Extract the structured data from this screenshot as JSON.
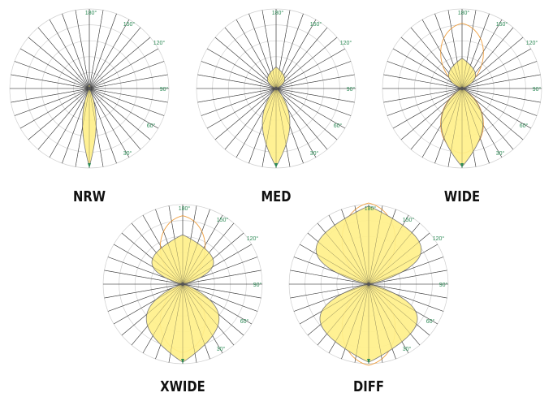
{
  "colors": {
    "grid_circle": "#d0d0d0",
    "grid_spoke": "#3a3a3a",
    "tick_text": "#2e8b57",
    "fill": "#fff08a",
    "fill_stroke": "#7a7a7a",
    "half_power": "#f0a040",
    "axis_marker": "#2e8b57"
  },
  "angle_ticks": [
    "180°",
    "150°",
    "120°",
    "90°",
    "60°",
    "30°"
  ],
  "panels": [
    {
      "name": "NRW",
      "lower": {
        "len": 0.98,
        "half": 5
      },
      "upper": {
        "len": 0.05,
        "half": 10
      },
      "cone": null
    },
    {
      "name": "MED",
      "lower": {
        "len": 0.98,
        "half": 10
      },
      "upper": {
        "len": 0.27,
        "half": 22
      },
      "cone": null
    },
    {
      "name": "WIDE",
      "lower": {
        "len": 0.98,
        "half": 15
      },
      "upper": {
        "len": 0.38,
        "half": 24
      },
      "cone": 0.82
    },
    {
      "name": "XWIDE",
      "lower": {
        "len": 0.98,
        "half": 25
      },
      "upper": {
        "len": 0.62,
        "half": 32
      },
      "cone": 0.86
    },
    {
      "name": "DIFF",
      "lower": {
        "len": 0.98,
        "half": 32
      },
      "upper": {
        "len": 0.98,
        "half": 34
      },
      "cone": 1.02
    }
  ]
}
